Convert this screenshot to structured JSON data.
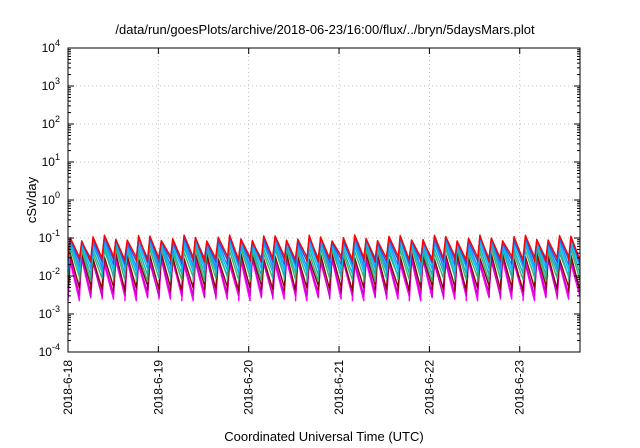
{
  "chart_data": {
    "type": "line",
    "title": "/data/run/goesPlots/archive/2018-06-23/16:00/flux/../bryn/5daysMars.plot",
    "xlabel": "Coordinated Universal Time (UTC)",
    "ylabel": "cSv/day",
    "yscale": "log",
    "ylim": [
      0.0001,
      10000
    ],
    "xlim": [
      "2018-06-18 00:00",
      "2018-06-23 16:00"
    ],
    "grid": true,
    "legend": "none",
    "x_ticks": [
      "2018-6-18",
      "2018-6-19",
      "2018-6-20",
      "2018-6-21",
      "2018-6-22",
      "2018-6-23"
    ],
    "y_ticks": [
      {
        "base": "10",
        "exp": "-4",
        "value": 0.0001
      },
      {
        "base": "10",
        "exp": "-3",
        "value": 0.001
      },
      {
        "base": "10",
        "exp": "-2",
        "value": 0.01
      },
      {
        "base": "10",
        "exp": "-1",
        "value": 0.1
      },
      {
        "base": "10",
        "exp": "0",
        "value": 1
      },
      {
        "base": "10",
        "exp": "1",
        "value": 10
      },
      {
        "base": "10",
        "exp": "2",
        "value": 100
      },
      {
        "base": "10",
        "exp": "3",
        "value": 1000
      },
      {
        "base": "10",
        "exp": "4",
        "value": 10000
      }
    ],
    "pattern": {
      "cycles_per_day": 8,
      "days": 5.667
    },
    "series": [
      {
        "color": "#ff00ff",
        "peak": 0.028,
        "trough": 0.0028
      },
      {
        "color": "#cc00cc",
        "peak": 0.032,
        "trough": 0.0035
      },
      {
        "color": "#8b0000",
        "peak": 0.04,
        "trough": 0.005
      },
      {
        "color": "#3cb371",
        "peak": 0.055,
        "trough": 0.009
      },
      {
        "color": "#20b2aa",
        "peak": 0.07,
        "trough": 0.012
      },
      {
        "color": "#00bfff",
        "peak": 0.085,
        "trough": 0.016
      },
      {
        "color": "#1e90ff",
        "peak": 0.1,
        "trough": 0.02
      },
      {
        "color": "#3050e0",
        "peak": 0.11,
        "trough": 0.026
      },
      {
        "color": "#ff0000",
        "peak": 0.12,
        "trough": 0.03
      }
    ]
  }
}
